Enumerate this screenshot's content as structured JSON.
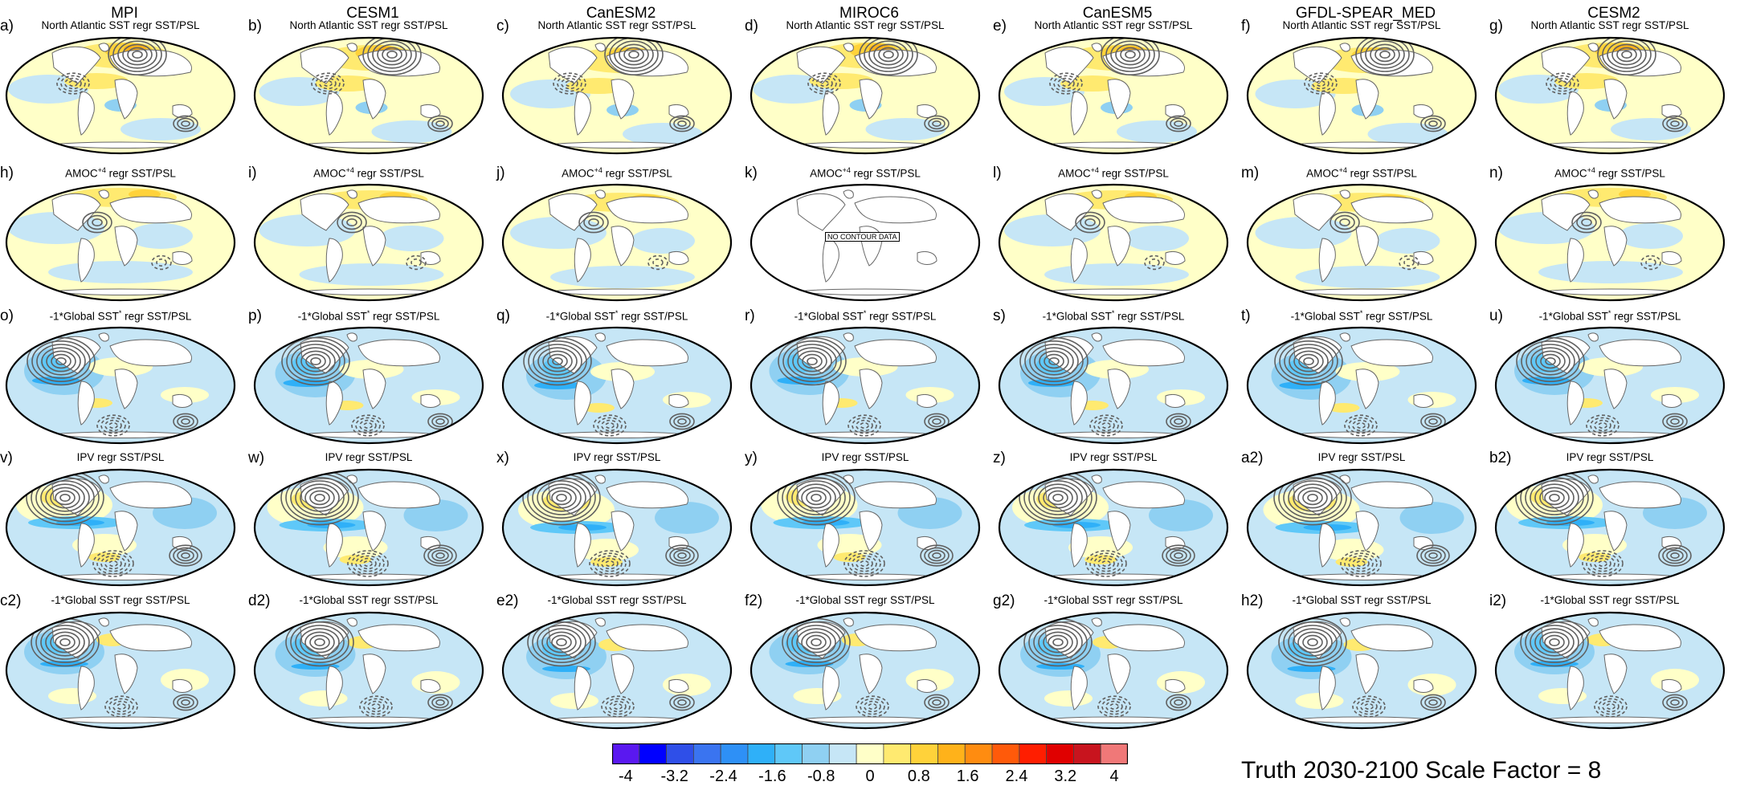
{
  "columns": [
    "MPI",
    "CESM1",
    "CanESM2",
    "MIROC6",
    "CanESM5",
    "GFDL-SPEAR_MED",
    "CESM2"
  ],
  "rows": [
    {
      "title": "North Atlantic SST regr SST/PSL",
      "labels": [
        "a)",
        "b)",
        "c)",
        "d)",
        "e)",
        "f)",
        "g)"
      ],
      "pattern": "natl"
    },
    {
      "title": "AMOC regr SST/PSL",
      "title_main": "AMOC",
      "title_sup": "+4",
      "title_rest": " regr SST/PSL",
      "labels": [
        "h)",
        "i)",
        "j)",
        "k)",
        "l)",
        "m)",
        "n)"
      ],
      "pattern": "amoc"
    },
    {
      "title": "-1*Global SST regr SST/PSL",
      "title_main": "-1*Global SST",
      "title_sup": "*",
      "title_rest": " regr SST/PSL",
      "labels": [
        "o)",
        "p)",
        "q)",
        "r)",
        "s)",
        "t)",
        "u)"
      ],
      "pattern": "gsst_star"
    },
    {
      "title": "IPV regr SST/PSL",
      "labels": [
        "v)",
        "w)",
        "x)",
        "y)",
        "z)",
        "a2)",
        "b2)"
      ],
      "pattern": "ipv"
    },
    {
      "title": "-1*Global SST regr SST/PSL",
      "labels": [
        "c2)",
        "d2)",
        "e2)",
        "f2)",
        "g2)",
        "h2)",
        "i2)"
      ],
      "pattern": "gsst"
    }
  ],
  "no_contour_panel": {
    "row": 1,
    "col": 3,
    "text": "NO CONTOUR DATA"
  },
  "colorbar": {
    "colors": [
      "#5a18f0",
      "#0000ff",
      "#2f4fe8",
      "#3a74f0",
      "#2e90f6",
      "#2fb0f8",
      "#5fc8f8",
      "#8fd0f2",
      "#c6e6f6",
      "#ffffc8",
      "#ffea70",
      "#ffd23a",
      "#ffb21a",
      "#ff8c10",
      "#ff5a0a",
      "#ff1e00",
      "#e00000",
      "#c8141e",
      "#f07878"
    ],
    "tick_labels": [
      "-4",
      "-3.2",
      "-2.4",
      "-1.6",
      "-0.8",
      "0",
      "0.8",
      "1.6",
      "2.4",
      "3.2",
      "4"
    ]
  },
  "caption": "Truth 2030-2100   Scale Factor = 8"
}
